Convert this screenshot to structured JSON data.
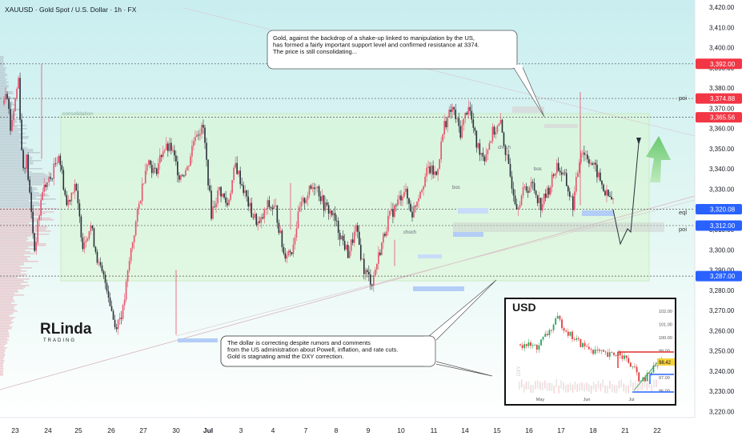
{
  "header": {
    "symbol_line": "XAUUSD · Gold Spot / U.S. Dollar · 1h · FX"
  },
  "logo": {
    "text": "RLinda",
    "sub": "TRADING"
  },
  "colors": {
    "bull": "#e9506a",
    "bear": "#2a2e39",
    "accent_red": "#f23645",
    "accent_blue": "#2962ff",
    "zone_green": "#cfeec6",
    "arrow_green": "#7bd37c",
    "bg_top": "#cfeef0",
    "bg_bottom": "#ffffff"
  },
  "annotations": {
    "top_note": "Gold, against the backdrop of a shake-up linked to manipulation by the US,\nhas formed a fairly important support level and confirmed resistance at 3374.\nThe price is still consolidating...",
    "bottom_note": "The dollar is correcting despite rumors and comments\nfrom the US administration about Powell, inflation, and rate cuts.\nGold is stagnating amid the DXY correction.",
    "consolidation": "consolidation",
    "choch1": "choch",
    "choch2": "choch",
    "bos1": "bos",
    "bos2": "bos",
    "poi_top": "poi",
    "eql": "eql",
    "poi_bottom": "poi"
  },
  "inset": {
    "title": "USD",
    "y_ticks": [
      "102.00",
      "101.00",
      "100.00",
      "99.00",
      "98.00",
      "97.00",
      "96.00"
    ],
    "price_tag": "98.42",
    "x_ticks": [
      "May",
      "Jun",
      "Jul"
    ],
    "side_label": "DXY"
  },
  "chart_data": {
    "type": "candlestick",
    "title": "XAUUSD · Gold Spot / U.S. Dollar · 1h · FX",
    "x_ticks": [
      "23",
      "24",
      "25",
      "26",
      "27",
      "30",
      "Jul",
      "3",
      "4",
      "7",
      "8",
      "9",
      "10",
      "11",
      "14",
      "15",
      "16",
      "17",
      "18",
      "21",
      "22"
    ],
    "y_ticks": [
      "3,420.00",
      "3,410.00",
      "3,400.00",
      "3,390.00",
      "3,380.00",
      "3,370.00",
      "3,360.00",
      "3,350.00",
      "3,340.00",
      "3,330.00",
      "3,320.00",
      "3,310.00",
      "3,300.00",
      "3,290.00",
      "3,280.00",
      "3,270.00",
      "3,260.00",
      "3,250.00",
      "3,240.00",
      "3,230.00",
      "3,220.00"
    ],
    "ylim": [
      3217,
      3422
    ],
    "levels": [
      {
        "value": 3392.0,
        "label": "3,392.00",
        "color": "#f23645"
      },
      {
        "value": 3374.88,
        "label": "3,374.88",
        "color": "#f23645"
      },
      {
        "value": 3365.56,
        "label": "3,365.56",
        "color": "#f23645"
      },
      {
        "value": 3320.08,
        "label": "3,320.08",
        "color": "#2962ff"
      },
      {
        "value": 3312.0,
        "label": "3,312.00",
        "color": "#2962ff"
      },
      {
        "value": 3287.0,
        "label": "3,287.00",
        "color": "#2962ff"
      }
    ],
    "path": [
      [
        0,
        3372
      ],
      [
        0.5,
        3382
      ],
      [
        1,
        3360
      ],
      [
        1.5,
        3372
      ],
      [
        2,
        3385
      ],
      [
        2.5,
        3340
      ],
      [
        3,
        3345
      ],
      [
        4,
        3300
      ],
      [
        5,
        3330
      ],
      [
        6,
        3335
      ],
      [
        7,
        3348
      ],
      [
        8,
        3322
      ],
      [
        9,
        3333
      ],
      [
        10,
        3303
      ],
      [
        11,
        3312
      ],
      [
        12,
        3292
      ],
      [
        13,
        3282
      ],
      [
        14,
        3262
      ],
      [
        15,
        3270
      ],
      [
        16,
        3300
      ],
      [
        17,
        3322
      ],
      [
        18,
        3345
      ],
      [
        19,
        3338
      ],
      [
        20,
        3350
      ],
      [
        21,
        3350
      ],
      [
        22,
        3337
      ],
      [
        23,
        3340
      ],
      [
        24,
        3358
      ],
      [
        25,
        3360
      ],
      [
        26,
        3318
      ],
      [
        27,
        3330
      ],
      [
        28,
        3322
      ],
      [
        29,
        3342
      ],
      [
        30,
        3330
      ],
      [
        31,
        3318
      ],
      [
        32,
        3312
      ],
      [
        33,
        3322
      ],
      [
        34,
        3320
      ],
      [
        35,
        3298
      ],
      [
        36,
        3300
      ],
      [
        37,
        3320
      ],
      [
        38,
        3328
      ],
      [
        39,
        3333
      ],
      [
        40,
        3322
      ],
      [
        41,
        3318
      ],
      [
        42,
        3308
      ],
      [
        43,
        3298
      ],
      [
        44,
        3310
      ],
      [
        45,
        3290
      ],
      [
        46,
        3284
      ],
      [
        47,
        3300
      ],
      [
        48,
        3315
      ],
      [
        49,
        3322
      ],
      [
        50,
        3330
      ],
      [
        51,
        3318
      ],
      [
        52,
        3330
      ],
      [
        53,
        3340
      ],
      [
        54,
        3337
      ],
      [
        55,
        3362
      ],
      [
        56,
        3370
      ],
      [
        57,
        3358
      ],
      [
        58,
        3372
      ],
      [
        59,
        3352
      ],
      [
        60,
        3346
      ],
      [
        61,
        3358
      ],
      [
        62,
        3362
      ],
      [
        63,
        3340
      ],
      [
        64,
        3322
      ],
      [
        65,
        3330
      ],
      [
        66,
        3332
      ],
      [
        67,
        3322
      ],
      [
        68,
        3330
      ],
      [
        69,
        3342
      ],
      [
        70,
        3335
      ],
      [
        71,
        3322
      ],
      [
        72,
        3350
      ],
      [
        73,
        3345
      ],
      [
        74,
        3338
      ],
      [
        75,
        3328
      ],
      [
        76,
        3324
      ]
    ],
    "x_span": [
      0,
      76
    ]
  }
}
